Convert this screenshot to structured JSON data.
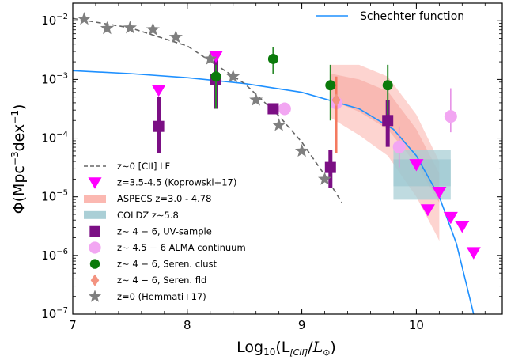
{
  "chart_data": {
    "type": "scatter",
    "xlabel": "Log₁₀(L[CII]/L⊙)",
    "ylabel": "Φ(Mpc⁻³dex⁻¹)",
    "xlim": [
      7,
      10.75
    ],
    "ylim_log10": [
      -7,
      -1.7
    ],
    "x_ticks": [
      {
        "v": 7,
        "label": "7"
      },
      {
        "v": 8,
        "label": "8"
      },
      {
        "v": 9,
        "label": "9"
      },
      {
        "v": 10,
        "label": "10"
      }
    ],
    "y_ticks": [
      {
        "e": -2,
        "mant": "10",
        "exp": "−2"
      },
      {
        "e": -3,
        "mant": "10",
        "exp": "−3"
      },
      {
        "e": -4,
        "mant": "10",
        "exp": "−4"
      },
      {
        "e": -5,
        "mant": "10",
        "exp": "−5"
      },
      {
        "e": -6,
        "mant": "10",
        "exp": "−6"
      },
      {
        "e": -7,
        "mant": "10",
        "exp": "−7"
      }
    ],
    "legend_top_right": "Schechter function",
    "legend_placement": "lower-left",
    "colors": {
      "schechter": "#1e90ff",
      "z0_lf": "#666666",
      "koprowski": "#ff00ff",
      "aspecs": "#fbb8b1",
      "coldz": "#aacfd6",
      "uv": "#7b0f84",
      "alma": "#f2a6f2",
      "clust": "#0b7a0b",
      "fld": "#f39380",
      "hemmati": "#7f7f7f"
    },
    "series": [
      {
        "key": "z0_lf",
        "name": "z∼0 [CII] LF",
        "kind": "dashed-line",
        "points": [
          [
            7.0,
            -1.96
          ],
          [
            7.5,
            -2.12
          ],
          [
            8.0,
            -2.43
          ],
          [
            8.5,
            -3.07
          ],
          [
            8.8,
            -3.62
          ],
          [
            9.0,
            -4.07
          ],
          [
            9.2,
            -4.63
          ],
          [
            9.35,
            -5.1
          ]
        ]
      },
      {
        "key": "koprowski",
        "name": "z=3.5-4.5 (Koprowski+17)",
        "kind": "triangle-down",
        "points": [
          [
            7.75,
            -3.18
          ],
          [
            8.25,
            -2.6
          ],
          [
            10.0,
            -4.45
          ],
          [
            10.1,
            -5.22
          ],
          [
            10.2,
            -4.92
          ],
          [
            10.3,
            -5.35
          ],
          [
            10.4,
            -5.5
          ],
          [
            10.5,
            -5.95
          ]
        ]
      },
      {
        "key": "aspecs",
        "name": "ASPECS z=3.0 - 4.78",
        "kind": "band"
      },
      {
        "key": "coldz",
        "name": "COLDZ z∼5.8",
        "kind": "box",
        "x_range": [
          9.8,
          10.3
        ],
        "y_range_log10": [
          -5.05,
          -4.2
        ]
      },
      {
        "key": "uv",
        "name": "z∼ 4 − 6, UV-sample",
        "kind": "square",
        "points": [
          {
            "x": 7.75,
            "y": -3.8,
            "lo": -4.25,
            "hi": -3.3
          },
          {
            "x": 8.25,
            "y": -3.0,
            "lo": -3.5,
            "hi": -2.55
          },
          {
            "x": 8.75,
            "y": -3.5,
            "lo": -3.5,
            "hi": -3.5
          },
          {
            "x": 9.25,
            "y": -4.5,
            "lo": -4.85,
            "hi": -4.2
          },
          {
            "x": 9.75,
            "y": -3.7,
            "lo": -4.15,
            "hi": -3.35
          }
        ]
      },
      {
        "key": "alma",
        "name": "z∼ 4.5 − 6 ALMA continuum",
        "kind": "circle-light",
        "points": [
          {
            "x": 8.85,
            "y": -3.5,
            "lo": -3.5,
            "hi": -3.5
          },
          {
            "x": 9.3,
            "y": -3.4,
            "lo": -3.8,
            "hi": -2.95
          },
          {
            "x": 9.85,
            "y": -4.15,
            "lo": -4.5,
            "hi": -3.8
          },
          {
            "x": 10.3,
            "y": -3.63,
            "lo": -3.9,
            "hi": -3.15
          }
        ]
      },
      {
        "key": "clust",
        "name": "z∼ 4 − 6, Seren. clust",
        "kind": "circle",
        "points": [
          {
            "x": 8.25,
            "y": -2.95,
            "lo": -3.5,
            "hi": -2.75
          },
          {
            "x": 8.75,
            "y": -2.65,
            "lo": -2.9,
            "hi": -2.45
          },
          {
            "x": 9.25,
            "y": -3.1,
            "lo": -3.7,
            "hi": -2.75
          },
          {
            "x": 9.75,
            "y": -3.1,
            "lo": -3.6,
            "hi": -2.75
          }
        ]
      },
      {
        "key": "fld",
        "name": "z∼ 4 − 6, Seren. fld",
        "kind": "diamond",
        "points": [
          {
            "x": 9.3,
            "y": -3.35,
            "lo": -4.25,
            "hi": -2.95
          }
        ]
      },
      {
        "key": "hemmati",
        "name": "z=0 (Hemmati+17)",
        "kind": "star",
        "points": [
          [
            7.1,
            -1.97
          ],
          [
            7.3,
            -2.13
          ],
          [
            7.5,
            -2.12
          ],
          [
            7.7,
            -2.15
          ],
          [
            7.9,
            -2.28
          ],
          [
            8.2,
            -2.65
          ],
          [
            8.4,
            -2.95
          ],
          [
            8.6,
            -3.35
          ],
          [
            8.8,
            -3.78
          ],
          [
            9.0,
            -4.22
          ],
          [
            9.2,
            -4.7
          ]
        ]
      }
    ],
    "schechter_curve": [
      [
        7.0,
        -2.85
      ],
      [
        7.5,
        -2.9
      ],
      [
        8.0,
        -2.97
      ],
      [
        8.5,
        -3.07
      ],
      [
        9.0,
        -3.22
      ],
      [
        9.5,
        -3.5
      ],
      [
        9.8,
        -3.85
      ],
      [
        10.0,
        -4.3
      ],
      [
        10.2,
        -5.0
      ],
      [
        10.35,
        -5.8
      ],
      [
        10.45,
        -6.6
      ],
      [
        10.5,
        -7.0
      ]
    ],
    "aspecs_outer": {
      "x": [
        9.25,
        9.5,
        9.75,
        10.0,
        10.2
      ],
      "lo": [
        -3.65,
        -3.95,
        -4.3,
        -5.0,
        -5.75
      ],
      "hi": [
        -2.75,
        -2.75,
        -2.95,
        -3.6,
        -4.4
      ]
    },
    "aspecs_inner": {
      "x": [
        9.25,
        9.5,
        9.75,
        10.0,
        10.2
      ],
      "lo": [
        -3.35,
        -3.55,
        -3.85,
        -4.45,
        -5.1
      ],
      "hi": [
        -2.9,
        -3.0,
        -3.2,
        -3.85,
        -4.6
      ]
    }
  }
}
